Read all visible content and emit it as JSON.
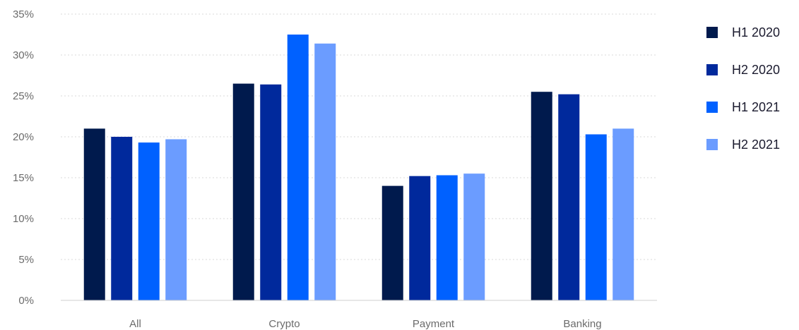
{
  "chart_data": {
    "type": "bar",
    "categories": [
      "All",
      "Crypto",
      "Payment",
      "Banking"
    ],
    "series": [
      {
        "name": "H1 2020",
        "color": "#001a4d",
        "values": [
          21.0,
          26.5,
          14.0,
          25.5
        ]
      },
      {
        "name": "H2 2020",
        "color": "#00299c",
        "values": [
          20.0,
          26.4,
          15.2,
          25.2
        ]
      },
      {
        "name": "H1 2021",
        "color": "#0061ff",
        "values": [
          19.3,
          32.5,
          15.3,
          20.3
        ]
      },
      {
        "name": "H2 2021",
        "color": "#6b9cff",
        "values": [
          19.7,
          31.4,
          15.5,
          21.0
        ]
      }
    ],
    "ylim": [
      0,
      35
    ],
    "yticks": [
      0,
      5,
      10,
      15,
      20,
      25,
      30,
      35
    ],
    "ytick_labels": [
      "0%",
      "5%",
      "10%",
      "15%",
      "20%",
      "25%",
      "30%",
      "35%"
    ],
    "grid": true,
    "legend_position": "right"
  }
}
